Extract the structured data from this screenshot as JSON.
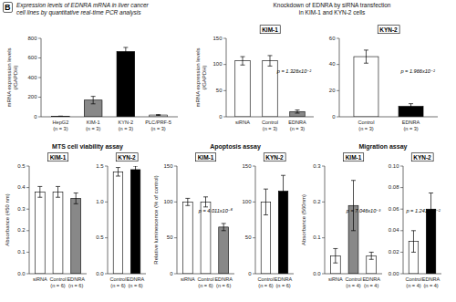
{
  "chart_data": [
    {
      "type": "bar",
      "subtitle": "Expression levels of EDNRA mRNA in liver cancer\ncell lines by quantitative real-time PCR analysis",
      "annotations": [
        "B"
      ],
      "categories": [
        "HepG2\n(n = 3)",
        "KIM-1\n(n = 3)",
        "KYN-2\n(n = 3)",
        "PLC/PRF-5\n(n = 3)"
      ],
      "values": [
        5,
        170,
        665,
        18
      ],
      "errors": [
        2,
        38,
        42,
        4
      ],
      "colors": [
        "white",
        "#888888",
        "black",
        "white"
      ],
      "y_label": "mRNA expression levels\n(/GAPDH)",
      "ylim": [
        0,
        800
      ],
      "yticks": [
        0,
        200,
        400,
        600,
        800
      ]
    },
    {
      "type": "bar",
      "subtitle": "Knockdown of EDNRA by siRNA transfection\nin KIM-1 and KYN-2 cells",
      "title": "KIM-1",
      "annotations": [
        "p = 1.326x10⁻²"
      ],
      "categories": [
        "siRNA",
        "Control\n(n = 3)",
        "EDNRA\n(n = 3)"
      ],
      "values": [
        107,
        107,
        10
      ],
      "errors": [
        8,
        10,
        3
      ],
      "colors": [
        "white",
        "white",
        "#888888"
      ],
      "y_label": "mRNA expression levels\n(/GAPDH)",
      "ylim": [
        0,
        150
      ],
      "yticks": [
        0,
        50,
        100,
        150
      ]
    },
    {
      "type": "bar",
      "title": "KYN-2",
      "annotations": [
        "p = 1.966x10⁻²"
      ],
      "categories": [
        "Control\n(n = 3)",
        "EDNRA\n(n = 3)"
      ],
      "values": [
        46,
        8
      ],
      "errors": [
        5,
        2
      ],
      "colors": [
        "white",
        "black"
      ],
      "ylim": [
        0,
        60
      ],
      "yticks": [
        0,
        20,
        40,
        60
      ]
    },
    {
      "type": "bar",
      "subtitle": "MTS cell viability assay",
      "title": "KIM-1",
      "categories": [
        "siRNA",
        "Control\n(n = 6)",
        "EDNRA\n(n = 6)"
      ],
      "values": [
        0.38,
        0.38,
        0.35
      ],
      "errors": [
        0.025,
        0.025,
        0.025
      ],
      "colors": [
        "white",
        "white",
        "#888888"
      ],
      "y_label": "Absorbance (450 nm)",
      "ylim": [
        0,
        0.5
      ],
      "yticks": [
        {
          "value": 0,
          "label": "0.0"
        },
        0.1,
        0.2,
        0.3,
        0.4,
        0.5
      ]
    },
    {
      "type": "bar",
      "title": "KYN-2",
      "categories": [
        "Control\n(n = 6)",
        "EDNRA\n(n = 6)"
      ],
      "values": [
        1.42,
        1.45
      ],
      "errors": [
        0.06,
        0.05
      ],
      "colors": [
        "white",
        "black"
      ],
      "ylim": [
        0,
        1.5
      ],
      "yticks": [
        {
          "value": 0,
          "label": "0.0"
        },
        0.5,
        {
          "value": 1,
          "label": "1.0"
        },
        1.5
      ]
    },
    {
      "type": "bar",
      "subtitle": "Apoptosis assay",
      "title": "KIM-1",
      "annotations": [
        "p = 4.011x10⁻⁶"
      ],
      "categories": [
        "siRNA",
        "Control\n(n = 6)",
        "EDNRA\n(n = 6)"
      ],
      "values": [
        100,
        100,
        65
      ],
      "errors": [
        5,
        7,
        5
      ],
      "colors": [
        "white",
        "white",
        "#888888"
      ],
      "y_label": "Relative luminescence (% of control)",
      "ylim": [
        0,
        150
      ],
      "yticks": [
        0,
        50,
        100,
        150
      ]
    },
    {
      "type": "bar",
      "title": "KYN-2",
      "categories": [
        "Control\n(n = 6)",
        "EDNRA\n(n = 6)"
      ],
      "values": [
        100,
        115
      ],
      "errors": [
        18,
        22
      ],
      "colors": [
        "white",
        "black"
      ],
      "ylim": [
        0,
        150
      ],
      "yticks": [
        0,
        50,
        100,
        150
      ]
    },
    {
      "type": "bar",
      "subtitle": "Migration assay",
      "title": "KIM-1",
      "annotations": [
        "p = 7.046x10⁻³"
      ],
      "categories": [
        "siRNA",
        "Control\n(n = 4)",
        "EDNRA\n(n = 4)"
      ],
      "values": [
        0.05,
        0.19,
        0.05
      ],
      "errors": [
        0.02,
        0.07,
        0.01
      ],
      "colors": [
        "white",
        "#888888",
        "white"
      ],
      "y_label": "Absorbance (560nm)",
      "ylim": [
        0,
        0.3
      ],
      "yticks": [
        {
          "value": 0,
          "label": "0.0"
        },
        0.1,
        0.2,
        0.3
      ]
    },
    {
      "type": "bar",
      "title": "KYN-2",
      "annotations": [
        "p = 1.241x10⁻²"
      ],
      "categories": [
        "Control\n(n = 4)",
        "EDNRA\n(n = 4)"
      ],
      "values": [
        0.03,
        0.06
      ],
      "errors": [
        0.01,
        0.015
      ],
      "colors": [
        "white",
        "black"
      ],
      "ylim": [
        0,
        0.1
      ],
      "yticks": [
        {
          "value": 0,
          "label": "0.00"
        },
        0.02,
        0.04,
        0.06,
        0.08,
        {
          "value": 0.1,
          "label": "0.10"
        }
      ]
    }
  ]
}
